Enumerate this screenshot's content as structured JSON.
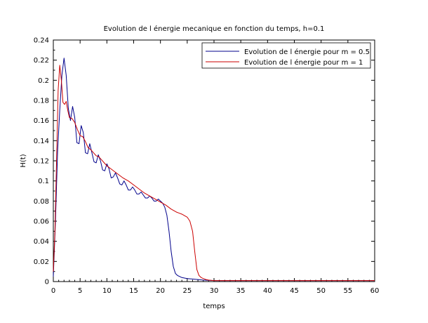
{
  "chart_data": {
    "type": "line",
    "title": "Evolution de l énergie mecanique en fonction du temps, h=0.1",
    "xlabel": "temps",
    "ylabel": "H(t)",
    "xlim": [
      0,
      60
    ],
    "ylim": [
      0,
      0.24
    ],
    "xticks": [
      "0",
      "5",
      "10",
      "15",
      "20",
      "25",
      "30",
      "35",
      "40",
      "45",
      "50",
      "55",
      "60"
    ],
    "yticks": [
      "0",
      "0.02",
      "0.04",
      "0.06",
      "0.08",
      "0.1",
      "0.12",
      "0.14",
      "0.16",
      "0.18",
      "0.2",
      "0.22",
      "0.24"
    ],
    "grid": false,
    "legend_position": "top-right",
    "series": [
      {
        "name": "Evolution de l énergie pour m = 0.5",
        "color": "#00008b",
        "x": [
          0,
          0.4,
          0.8,
          1.2,
          1.6,
          2.0,
          2.4,
          2.8,
          3.2,
          3.6,
          4.0,
          4.4,
          4.8,
          5.2,
          5.6,
          6.0,
          6.4,
          6.8,
          7.2,
          7.6,
          8.0,
          8.4,
          8.8,
          9.2,
          9.6,
          10.0,
          10.4,
          10.8,
          11.2,
          11.6,
          12.0,
          12.4,
          12.8,
          13.2,
          13.6,
          14.0,
          14.4,
          14.8,
          15.2,
          15.6,
          16.0,
          16.4,
          16.8,
          17.2,
          17.6,
          18.0,
          18.4,
          18.8,
          19.2,
          19.6,
          20.0,
          20.4,
          20.8,
          21.2,
          21.6,
          22.0,
          22.4,
          22.8,
          23.2,
          23.6,
          24.0,
          24.5,
          25.0,
          26.0,
          27.0,
          28.0,
          29.0,
          30.0,
          35.0,
          40.0,
          45.0,
          50.0,
          55.0,
          60.0
        ],
        "y": [
          0.005,
          0.06,
          0.13,
          0.17,
          0.205,
          0.222,
          0.205,
          0.172,
          0.16,
          0.174,
          0.163,
          0.138,
          0.137,
          0.155,
          0.148,
          0.128,
          0.127,
          0.137,
          0.128,
          0.119,
          0.118,
          0.126,
          0.12,
          0.111,
          0.11,
          0.117,
          0.112,
          0.103,
          0.104,
          0.108,
          0.103,
          0.097,
          0.096,
          0.1,
          0.096,
          0.091,
          0.091,
          0.094,
          0.091,
          0.087,
          0.087,
          0.089,
          0.086,
          0.083,
          0.083,
          0.085,
          0.083,
          0.08,
          0.08,
          0.082,
          0.08,
          0.078,
          0.074,
          0.066,
          0.05,
          0.03,
          0.015,
          0.008,
          0.006,
          0.005,
          0.004,
          0.0035,
          0.003,
          0.0025,
          0.002,
          0.0015,
          0.0012,
          0.001,
          0.001,
          0.001,
          0.001,
          0.001,
          0.001,
          0.001
        ]
      },
      {
        "name": "Evolution de l énergie pour m = 1",
        "color": "#cc0000",
        "x": [
          0,
          0.3,
          0.6,
          0.9,
          1.2,
          1.5,
          1.8,
          2.1,
          2.4,
          2.7,
          3.0,
          3.5,
          4.0,
          4.5,
          5.0,
          5.5,
          6.0,
          6.5,
          7.0,
          7.5,
          8.0,
          8.5,
          9.0,
          9.5,
          10.0,
          11.0,
          12.0,
          13.0,
          14.0,
          15.0,
          16.0,
          17.0,
          18.0,
          19.0,
          20.0,
          21.0,
          22.0,
          23.0,
          24.0,
          25.0,
          25.5,
          26.0,
          26.4,
          26.8,
          27.2,
          27.6,
          28.0,
          28.5,
          29.0,
          30.0,
          35.0,
          40.0,
          45.0,
          50.0,
          55.0,
          60.0
        ],
        "y": [
          0.01,
          0.05,
          0.12,
          0.19,
          0.215,
          0.2,
          0.178,
          0.176,
          0.179,
          0.17,
          0.163,
          0.162,
          0.158,
          0.151,
          0.145,
          0.144,
          0.139,
          0.133,
          0.131,
          0.128,
          0.125,
          0.124,
          0.121,
          0.118,
          0.115,
          0.111,
          0.107,
          0.103,
          0.1,
          0.096,
          0.092,
          0.088,
          0.085,
          0.082,
          0.079,
          0.076,
          0.072,
          0.069,
          0.067,
          0.064,
          0.06,
          0.05,
          0.03,
          0.012,
          0.006,
          0.004,
          0.003,
          0.002,
          0.0015,
          0.001,
          0.001,
          0.001,
          0.001,
          0.001,
          0.001,
          0.001
        ]
      }
    ]
  }
}
